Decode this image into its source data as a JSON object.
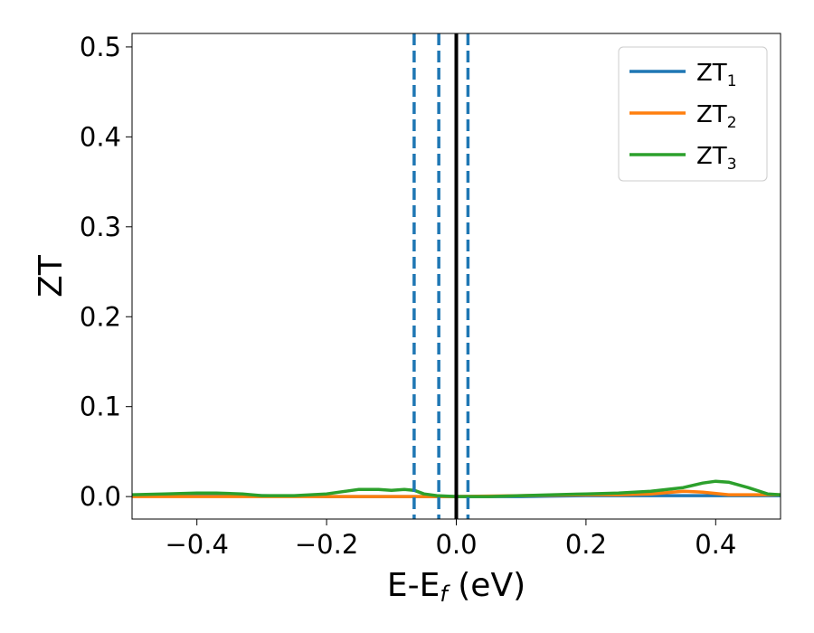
{
  "chart_data": {
    "type": "line",
    "xlabel": "E-E",
    "xlabel_sub": "f",
    "xlabel_unit": " (eV)",
    "ylabel": "ZT",
    "xlim": [
      -0.5,
      0.5
    ],
    "ylim": [
      -0.025,
      0.515
    ],
    "xticks": [
      -0.4,
      -0.2,
      0.0,
      0.2,
      0.4
    ],
    "xtick_labels": [
      "−0.4",
      "−0.2",
      "0.0",
      "0.2",
      "0.4"
    ],
    "yticks": [
      0.0,
      0.1,
      0.2,
      0.3,
      0.4,
      0.5
    ],
    "ytick_labels": [
      "0.0",
      "0.1",
      "0.2",
      "0.3",
      "0.4",
      "0.5"
    ],
    "grid": false,
    "legend_position": "top-right",
    "vlines": [
      {
        "x": -0.065,
        "style": "dashed",
        "color": "#1f77b4"
      },
      {
        "x": -0.027,
        "style": "dashed",
        "color": "#1f77b4"
      },
      {
        "x": 0.0,
        "style": "solid",
        "color": "#000000"
      },
      {
        "x": 0.018,
        "style": "dashed",
        "color": "#1f77b4"
      }
    ],
    "series": [
      {
        "name": "ZT",
        "sub": "1",
        "color": "#1f77b4",
        "x": [
          -0.5,
          -0.4,
          -0.3,
          -0.2,
          -0.1,
          -0.05,
          0.0,
          0.1,
          0.2,
          0.3,
          0.4,
          0.5
        ],
        "y": [
          0.001,
          0.001,
          0.001,
          0.0,
          0.0,
          0.0,
          0.0,
          0.0,
          0.001,
          0.001,
          0.001,
          0.001
        ]
      },
      {
        "name": "ZT",
        "sub": "2",
        "color": "#ff7f0e",
        "x": [
          -0.5,
          -0.4,
          -0.3,
          -0.2,
          -0.15,
          -0.1,
          -0.05,
          0.0,
          0.1,
          0.2,
          0.25,
          0.3,
          0.35,
          0.38,
          0.42,
          0.45,
          0.5
        ],
        "y": [
          0.0,
          0.0,
          0.0,
          0.0,
          0.0,
          0.0,
          0.0,
          0.0,
          0.001,
          0.002,
          0.002,
          0.003,
          0.006,
          0.005,
          0.002,
          0.002,
          0.002
        ]
      },
      {
        "name": "ZT",
        "sub": "3",
        "color": "#2ca02c",
        "x": [
          -0.5,
          -0.45,
          -0.4,
          -0.37,
          -0.33,
          -0.3,
          -0.25,
          -0.2,
          -0.17,
          -0.15,
          -0.12,
          -0.1,
          -0.08,
          -0.065,
          -0.05,
          -0.03,
          0.0,
          0.05,
          0.1,
          0.15,
          0.2,
          0.25,
          0.3,
          0.35,
          0.38,
          0.4,
          0.42,
          0.45,
          0.48,
          0.5
        ],
        "y": [
          0.002,
          0.003,
          0.004,
          0.004,
          0.003,
          0.001,
          0.001,
          0.003,
          0.006,
          0.008,
          0.008,
          0.007,
          0.008,
          0.007,
          0.003,
          0.001,
          0.0,
          0.0,
          0.001,
          0.002,
          0.003,
          0.004,
          0.006,
          0.01,
          0.015,
          0.017,
          0.016,
          0.01,
          0.003,
          0.002
        ]
      }
    ]
  }
}
